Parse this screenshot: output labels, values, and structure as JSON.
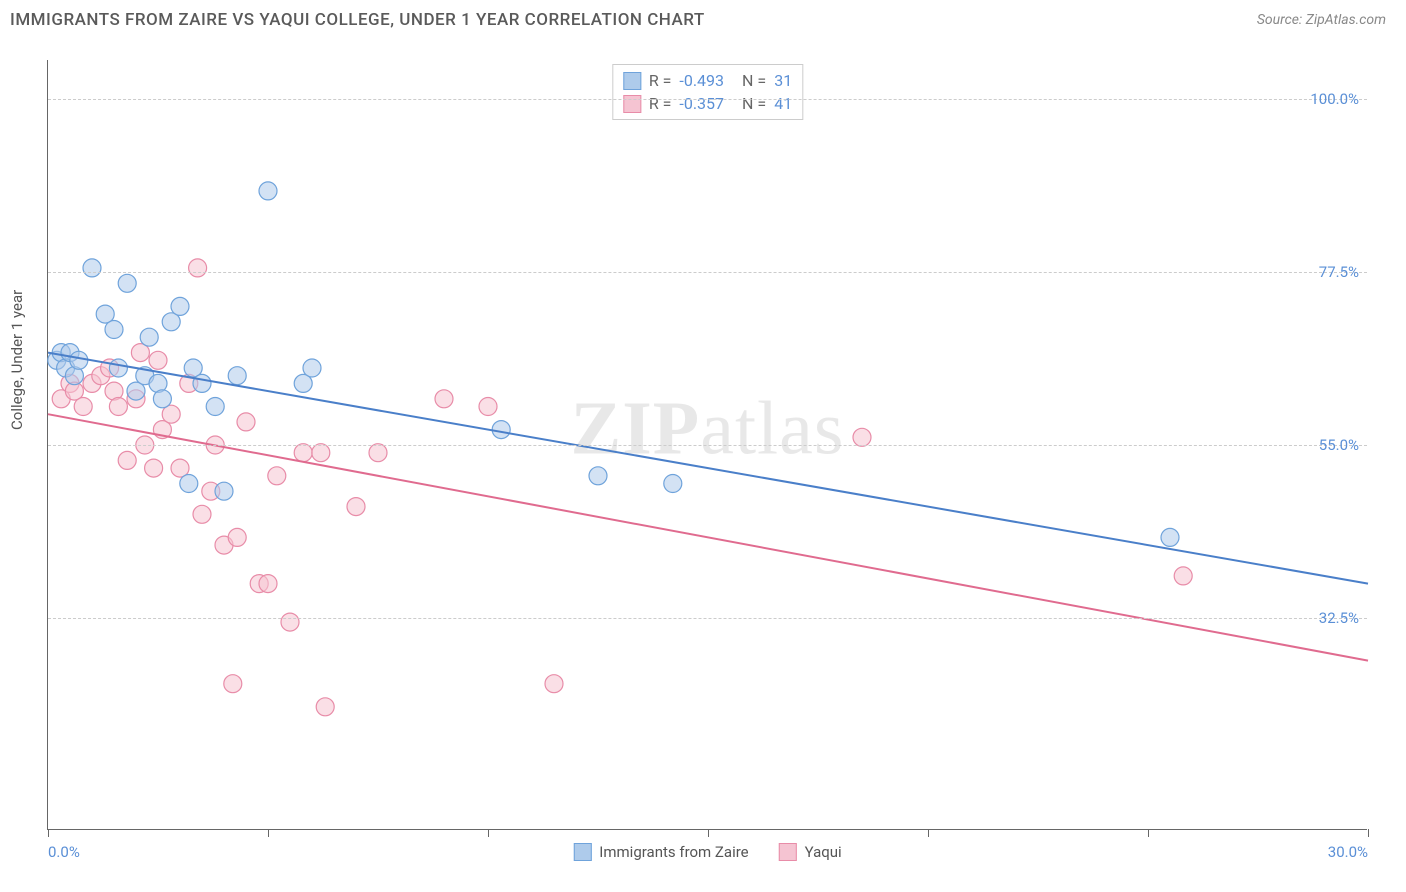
{
  "title": "IMMIGRANTS FROM ZAIRE VS YAQUI COLLEGE, UNDER 1 YEAR CORRELATION CHART",
  "source": "Source: ZipAtlas.com",
  "ylabel": "College, Under 1 year",
  "watermark_bold": "ZIP",
  "watermark_light": "atlas",
  "chart": {
    "type": "scatter",
    "xlim": [
      0,
      30
    ],
    "ylim": [
      5,
      105
    ],
    "x_ticks": [
      0,
      5,
      10,
      15,
      20,
      25,
      30
    ],
    "x_tick_labels": {
      "0": "0.0%",
      "30": "30.0%"
    },
    "y_gridlines": [
      32.5,
      55.0,
      77.5,
      100.0
    ],
    "y_gridline_labels": [
      "32.5%",
      "55.0%",
      "77.5%",
      "100.0%"
    ],
    "background_color": "#ffffff",
    "grid_color": "#cccccc",
    "axis_color": "#666666",
    "marker_radius": 9,
    "marker_opacity": 0.55,
    "line_width": 2
  },
  "series": [
    {
      "name": "Immigrants from Zaire",
      "color_fill": "#aecbeb",
      "color_stroke": "#6fa3db",
      "line_color": "#4a7fc9",
      "R": "-0.493",
      "N": "31",
      "trend": {
        "x1": 0,
        "y1": 67,
        "x2": 30,
        "y2": 37
      },
      "points": [
        [
          0.2,
          66
        ],
        [
          0.3,
          67
        ],
        [
          0.4,
          65
        ],
        [
          0.5,
          67
        ],
        [
          0.6,
          64
        ],
        [
          1.0,
          78
        ],
        [
          1.3,
          72
        ],
        [
          1.5,
          70
        ],
        [
          1.6,
          65
        ],
        [
          1.8,
          76
        ],
        [
          2.0,
          62
        ],
        [
          2.2,
          64
        ],
        [
          2.3,
          69
        ],
        [
          2.5,
          63
        ],
        [
          2.6,
          61
        ],
        [
          2.8,
          71
        ],
        [
          3.0,
          73
        ],
        [
          3.2,
          50
        ],
        [
          3.3,
          65
        ],
        [
          3.5,
          63
        ],
        [
          3.8,
          60
        ],
        [
          4.0,
          49
        ],
        [
          4.3,
          64
        ],
        [
          5.0,
          88
        ],
        [
          5.8,
          63
        ],
        [
          6.0,
          65
        ],
        [
          10.3,
          57
        ],
        [
          12.5,
          51
        ],
        [
          14.2,
          50
        ],
        [
          25.5,
          43
        ],
        [
          0.7,
          66
        ]
      ]
    },
    {
      "name": "Yaqui",
      "color_fill": "#f5c4d2",
      "color_stroke": "#e88ca8",
      "line_color": "#e06b8f",
      "R": "-0.357",
      "N": "41",
      "trend": {
        "x1": 0,
        "y1": 59,
        "x2": 30,
        "y2": 27
      },
      "points": [
        [
          0.3,
          61
        ],
        [
          0.5,
          63
        ],
        [
          0.6,
          62
        ],
        [
          0.8,
          60
        ],
        [
          1.0,
          63
        ],
        [
          1.2,
          64
        ],
        [
          1.4,
          65
        ],
        [
          1.5,
          62
        ],
        [
          1.6,
          60
        ],
        [
          1.8,
          53
        ],
        [
          2.0,
          61
        ],
        [
          2.1,
          67
        ],
        [
          2.2,
          55
        ],
        [
          2.4,
          52
        ],
        [
          2.5,
          66
        ],
        [
          2.6,
          57
        ],
        [
          2.8,
          59
        ],
        [
          3.0,
          52
        ],
        [
          3.2,
          63
        ],
        [
          3.4,
          78
        ],
        [
          3.5,
          46
        ],
        [
          3.7,
          49
        ],
        [
          3.8,
          55
        ],
        [
          4.0,
          42
        ],
        [
          4.2,
          24
        ],
        [
          4.3,
          43
        ],
        [
          4.5,
          58
        ],
        [
          4.8,
          37
        ],
        [
          5.0,
          37
        ],
        [
          5.2,
          51
        ],
        [
          5.5,
          32
        ],
        [
          5.8,
          54
        ],
        [
          6.2,
          54
        ],
        [
          6.3,
          21
        ],
        [
          7.0,
          47
        ],
        [
          7.5,
          54
        ],
        [
          9.0,
          61
        ],
        [
          10.0,
          60
        ],
        [
          11.5,
          24
        ],
        [
          18.5,
          56
        ],
        [
          25.8,
          38
        ]
      ]
    }
  ],
  "legend_top": {
    "r_label": "R =",
    "n_label": "N ="
  },
  "bottom_legend": {
    "label1": "Immigrants from Zaire",
    "label2": "Yaqui"
  }
}
